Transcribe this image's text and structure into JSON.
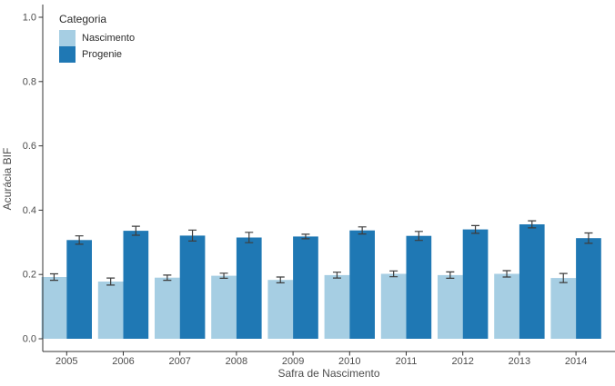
{
  "legend": {
    "title": "Categoria",
    "position": "top-left-inside",
    "items": [
      {
        "label": "Nascimento"
      },
      {
        "label": "Progenie"
      }
    ]
  },
  "chart_data": {
    "type": "bar",
    "title": "",
    "xlabel": "Safra de Nascimento",
    "ylabel": "Acurácia BIF",
    "categories": [
      "2005",
      "2006",
      "2007",
      "2008",
      "2009",
      "2010",
      "2011",
      "2012",
      "2013",
      "2014"
    ],
    "series": [
      {
        "name": "Nascimento",
        "color": "#a6cee3",
        "values": [
          0.192,
          0.178,
          0.19,
          0.196,
          0.183,
          0.198,
          0.202,
          0.198,
          0.202,
          0.189
        ],
        "errors": [
          0.01,
          0.011,
          0.008,
          0.008,
          0.009,
          0.009,
          0.009,
          0.01,
          0.01,
          0.014
        ]
      },
      {
        "name": "Progenie",
        "color": "#1f78b4",
        "values": [
          0.307,
          0.336,
          0.321,
          0.315,
          0.318,
          0.337,
          0.32,
          0.34,
          0.356,
          0.313
        ],
        "errors": [
          0.013,
          0.014,
          0.017,
          0.016,
          0.007,
          0.011,
          0.014,
          0.012,
          0.011,
          0.016
        ]
      }
    ],
    "error_bars": true,
    "ylim": [
      0.0,
      1.0
    ],
    "yticks": [
      0.0,
      0.2,
      0.4,
      0.6,
      0.8,
      1.0
    ],
    "ytick_labels": [
      "0.0",
      "0.2",
      "0.4",
      "0.6",
      "0.8",
      "1.0"
    ],
    "grid": false,
    "legend_position": "top-left-inside",
    "colors": {
      "axis_line": "#333333",
      "tick_mark": "#333333",
      "tick_text": "#4d4d4d",
      "error_bar": "#3d3d3d",
      "background": "#ffffff"
    }
  }
}
